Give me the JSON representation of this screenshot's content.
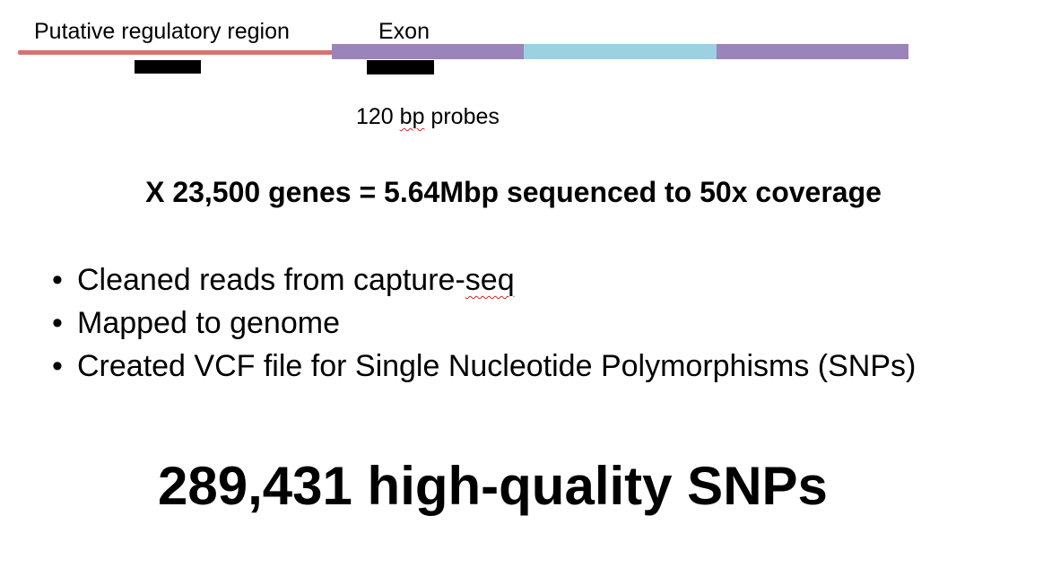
{
  "diagram": {
    "regulatory_label": "Putative regulatory region",
    "exon_label": "Exon",
    "probes_label_prefix": "120 ",
    "probes_label_squiggle": "bp",
    "probes_label_suffix": " probes",
    "colors": {
      "regulatory_region": "#d9716f",
      "exon_primary": "#9b83bb",
      "exon_middle": "#9cd1e1",
      "probe": "#000000",
      "spellcheck_underline": "#dd2222"
    }
  },
  "summary": "X 23,500 genes = 5.64Mbp sequenced to 50x coverage",
  "bullets": {
    "marker": "•",
    "item_1_prefix": "Cleaned reads from capture-",
    "item_1_squiggle": "seq",
    "item_2": "Mapped to genome",
    "item_3": "Created VCF file for Single Nucleotide Polymorphisms (SNPs)"
  },
  "headline": "289,431 high-quality SNPs"
}
